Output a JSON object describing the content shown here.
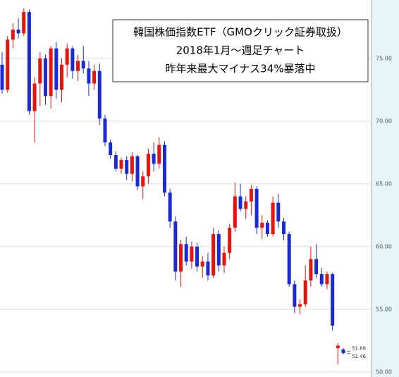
{
  "chart_data": {
    "type": "candlestick",
    "title_lines": [
      "韓国株価指数ETF（GMOクリック証券取扱）",
      "2018年1月～週足チャート",
      "昨年来最大マイナス34%暴落中"
    ],
    "up_color": "#e8140c",
    "down_color": "#1b2ad4",
    "grid": true,
    "ylim": [
      49.6,
      79.66
    ],
    "yticks": [
      {
        "value": 50,
        "label": "50.00"
      },
      {
        "value": 55,
        "label": "55.00"
      },
      {
        "value": 60,
        "label": "60.00"
      },
      {
        "value": 65,
        "label": "65.00"
      },
      {
        "value": 70,
        "label": "70.00"
      },
      {
        "value": 75,
        "label": "75.00"
      }
    ],
    "ohlc": [
      [
        74.5,
        75.5,
        72.2,
        72.5
      ],
      [
        72.5,
        76.8,
        72.3,
        76.5
      ],
      [
        76.5,
        77.8,
        75.8,
        77.3
      ],
      [
        77.3,
        78.2,
        76.6,
        77.0
      ],
      [
        77.0,
        79.0,
        76.8,
        78.7
      ],
      [
        78.7,
        78.9,
        70.5,
        70.8
      ],
      [
        70.8,
        73.5,
        68.3,
        73.0
      ],
      [
        73.0,
        75.5,
        71.2,
        75.0
      ],
      [
        75.0,
        75.3,
        71.3,
        72.0
      ],
      [
        72.0,
        76.0,
        71.0,
        75.8
      ],
      [
        75.8,
        76.3,
        71.8,
        72.5
      ],
      [
        72.5,
        75.0,
        71.5,
        74.5
      ],
      [
        74.5,
        76.2,
        73.5,
        75.8
      ],
      [
        75.8,
        76.0,
        73.4,
        74.0
      ],
      [
        74.0,
        75.3,
        73.2,
        74.8
      ],
      [
        74.8,
        76.0,
        73.8,
        74.2
      ],
      [
        74.2,
        74.8,
        72.0,
        73.0
      ],
      [
        73.0,
        74.5,
        72.5,
        74.0
      ],
      [
        74.0,
        74.6,
        69.7,
        70.2
      ],
      [
        70.2,
        70.5,
        68.0,
        68.3
      ],
      [
        68.3,
        68.5,
        67.0,
        67.3
      ],
      [
        67.3,
        67.6,
        66.0,
        66.2
      ],
      [
        66.2,
        67.1,
        65.8,
        66.9
      ],
      [
        66.9,
        67.2,
        65.3,
        65.8
      ],
      [
        65.8,
        67.5,
        65.2,
        67.2
      ],
      [
        67.2,
        67.3,
        64.5,
        64.8
      ],
      [
        64.8,
        66.0,
        63.8,
        65.6
      ],
      [
        65.6,
        67.8,
        65.0,
        67.4
      ],
      [
        67.4,
        68.3,
        66.0,
        66.6
      ],
      [
        66.6,
        68.7,
        66.2,
        68.1
      ],
      [
        68.1,
        68.4,
        64.0,
        64.3
      ],
      [
        64.3,
        64.6,
        61.5,
        62.0
      ],
      [
        62.0,
        62.4,
        57.3,
        58.0
      ],
      [
        58.0,
        60.5,
        56.8,
        60.2
      ],
      [
        60.2,
        60.8,
        58.5,
        58.8
      ],
      [
        58.8,
        60.4,
        58.2,
        60.0
      ],
      [
        60.0,
        60.3,
        58.0,
        58.4
      ],
      [
        58.4,
        59.2,
        57.5,
        58.8
      ],
      [
        58.8,
        59.5,
        57.3,
        57.7
      ],
      [
        57.7,
        61.5,
        57.5,
        61.0
      ],
      [
        61.0,
        61.3,
        58.0,
        58.5
      ],
      [
        58.5,
        60.0,
        57.9,
        59.5
      ],
      [
        59.5,
        61.8,
        59.0,
        61.5
      ],
      [
        61.5,
        65.1,
        61.2,
        64.0
      ],
      [
        64.0,
        65.0,
        62.8,
        63.0
      ],
      [
        63.0,
        64.0,
        62.2,
        63.6
      ],
      [
        63.6,
        64.9,
        62.5,
        64.6
      ],
      [
        64.6,
        64.8,
        61.0,
        61.5
      ],
      [
        61.5,
        62.5,
        60.6,
        61.9
      ],
      [
        61.9,
        62.1,
        60.8,
        61.0
      ],
      [
        61.0,
        64.0,
        60.8,
        63.5
      ],
      [
        63.5,
        64.2,
        61.5,
        62.0
      ],
      [
        62.0,
        62.3,
        60.5,
        61.0
      ],
      [
        61.0,
        61.2,
        56.8,
        57.0
      ],
      [
        57.0,
        57.3,
        54.7,
        55.2
      ],
      [
        55.2,
        55.8,
        54.6,
        55.4
      ],
      [
        55.4,
        58.5,
        55.2,
        57.3
      ],
      [
        57.3,
        60.0,
        56.8,
        59.0
      ],
      [
        59.0,
        60.2,
        57.5,
        57.8
      ],
      [
        57.8,
        58.3,
        56.8,
        57.0
      ],
      [
        57.0,
        58.0,
        56.6,
        57.8
      ],
      [
        57.8,
        57.9,
        53.3,
        53.7
      ],
      [
        51.9,
        52.3,
        50.6,
        52.1
      ],
      [
        51.8,
        51.9,
        51.4,
        51.5
      ]
    ],
    "price_labels": [
      {
        "value": 51.66,
        "label": "51.66"
      },
      {
        "value": 51.46,
        "label": "51.46"
      }
    ]
  }
}
